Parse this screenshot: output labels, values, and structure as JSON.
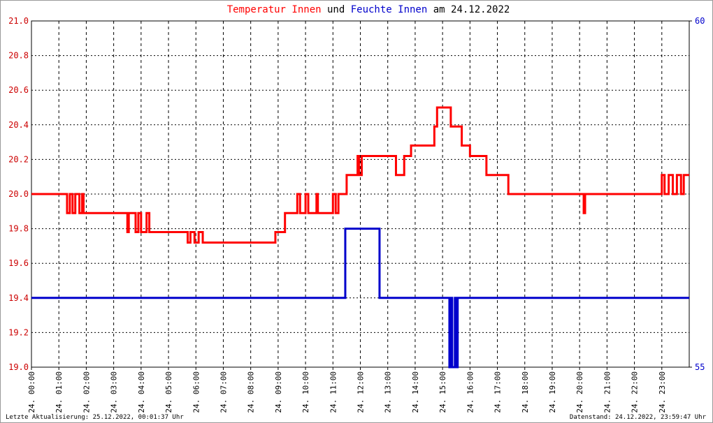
{
  "chart_data": {
    "type": "line",
    "title_parts": [
      {
        "text": "Temperatur Innen",
        "color": "#ff0000"
      },
      {
        "text": "und",
        "color": "#000000"
      },
      {
        "text": "Feuchte Innen",
        "color": "#0000cc"
      },
      {
        "text": "am 24.12.2022",
        "color": "#000000"
      }
    ],
    "footer_left": "Letzte Aktualisierung: 25.12.2022, 00:01:37 Uhr",
    "footer_right": "Datenstand: 24.12.2022, 23:59:47 Uhr",
    "grid": true,
    "xlim": [
      0,
      24
    ],
    "xticks": [
      {
        "value": 0,
        "label": "24. 00:00"
      },
      {
        "value": 1,
        "label": "24. 01:00"
      },
      {
        "value": 2,
        "label": "24. 02:00"
      },
      {
        "value": 3,
        "label": "24. 03:00"
      },
      {
        "value": 4,
        "label": "24. 04:00"
      },
      {
        "value": 5,
        "label": "24. 05:00"
      },
      {
        "value": 6,
        "label": "24. 06:00"
      },
      {
        "value": 7,
        "label": "24. 07:00"
      },
      {
        "value": 8,
        "label": "24. 08:00"
      },
      {
        "value": 9,
        "label": "24. 09:00"
      },
      {
        "value": 10,
        "label": "24. 10:00"
      },
      {
        "value": 11,
        "label": "24. 11:00"
      },
      {
        "value": 12,
        "label": "24. 12:00"
      },
      {
        "value": 13,
        "label": "24. 13:00"
      },
      {
        "value": 14,
        "label": "24. 14:00"
      },
      {
        "value": 15,
        "label": "24. 15:00"
      },
      {
        "value": 16,
        "label": "24. 16:00"
      },
      {
        "value": 17,
        "label": "24. 17:00"
      },
      {
        "value": 18,
        "label": "24. 18:00"
      },
      {
        "value": 19,
        "label": "24. 19:00"
      },
      {
        "value": 20,
        "label": "24. 20:00"
      },
      {
        "value": 21,
        "label": "24. 21:00"
      },
      {
        "value": 22,
        "label": "24. 22:00"
      },
      {
        "value": 23,
        "label": "24. 23:00"
      }
    ],
    "ylim": [
      19,
      21
    ],
    "yticks": [
      {
        "value": 19,
        "label": "19.0"
      },
      19.2,
      19.4,
      19.6,
      19.8,
      {
        "value": 20,
        "label": "20.0"
      },
      20.2,
      20.4,
      20.6,
      20.8,
      {
        "value": 21,
        "label": "21.0"
      }
    ],
    "y_color": "#cc0000",
    "y2lim": [
      55,
      60
    ],
    "y2ticks": [
      55,
      60
    ],
    "y2_color": "#0000cc",
    "series": [
      {
        "name": "Temperatur Innen",
        "color": "#ff0000",
        "axis": "y",
        "x": [
          0,
          1.3,
          1.3,
          1.4,
          1.4,
          1.5,
          1.5,
          1.6,
          1.6,
          1.75,
          1.75,
          1.85,
          1.85,
          1.9,
          1.9,
          3.5,
          3.5,
          3.55,
          3.55,
          3.8,
          3.8,
          3.9,
          3.9,
          4.0,
          4.0,
          4.2,
          4.2,
          4.3,
          4.3,
          5.7,
          5.7,
          5.8,
          5.8,
          5.95,
          5.95,
          6.1,
          6.1,
          6.25,
          6.25,
          8.9,
          8.9,
          9.25,
          9.25,
          9.7,
          9.7,
          9.8,
          9.8,
          10.0,
          10.0,
          10.1,
          10.1,
          10.4,
          10.4,
          10.45,
          10.45,
          11.0,
          11.0,
          11.1,
          11.1,
          11.2,
          11.2,
          11.5,
          11.5,
          11.9,
          11.9,
          11.95,
          11.95,
          12.05,
          12.05,
          13.3,
          13.3,
          13.6,
          13.6,
          13.85,
          13.85,
          14.7,
          14.7,
          14.8,
          14.8,
          15.3,
          15.3,
          15.7,
          15.7,
          16.0,
          16.0,
          16.6,
          16.6,
          17.4,
          17.4,
          20.15,
          20.15,
          20.2,
          20.2,
          23.0,
          23.0,
          23.1,
          23.1,
          23.25,
          23.25,
          23.4,
          23.4,
          23.55,
          23.55,
          23.7,
          23.7,
          23.8,
          23.8,
          24
        ],
        "values": [
          20,
          20,
          19.89,
          19.89,
          20,
          20,
          19.89,
          19.89,
          20,
          20,
          19.89,
          19.89,
          20,
          20,
          19.89,
          19.89,
          19.78,
          19.78,
          19.89,
          19.89,
          19.78,
          19.78,
          19.89,
          19.89,
          19.78,
          19.78,
          19.89,
          19.89,
          19.78,
          19.78,
          19.72,
          19.72,
          19.78,
          19.78,
          19.72,
          19.72,
          19.78,
          19.78,
          19.72,
          19.72,
          19.78,
          19.78,
          19.89,
          19.89,
          20,
          20,
          19.89,
          19.89,
          20,
          20,
          19.89,
          19.89,
          20,
          20,
          19.89,
          19.89,
          20,
          20,
          19.89,
          19.89,
          20,
          20,
          20.11,
          20.11,
          20.22,
          20.22,
          20.11,
          20.11,
          20.22,
          20.22,
          20.11,
          20.11,
          20.22,
          20.22,
          20.28,
          20.28,
          20.39,
          20.39,
          20.5,
          20.5,
          20.39,
          20.39,
          20.28,
          20.28,
          20.22,
          20.22,
          20.11,
          20.11,
          20,
          20,
          19.89,
          19.89,
          20,
          20,
          20.11,
          20.11,
          20,
          20,
          20.11,
          20.11,
          20,
          20,
          20.11,
          20.11,
          20,
          20,
          20.11,
          20.11
        ]
      },
      {
        "name": "Feuchte Innen",
        "color": "#0000cc",
        "axis": "y2",
        "x": [
          0,
          11.45,
          11.45,
          12.7,
          12.7,
          15.25,
          15.25,
          15.3,
          15.3,
          15.35,
          15.35,
          15.45,
          15.45,
          15.5,
          15.5,
          15.55,
          15.55,
          24
        ],
        "values": [
          56,
          56,
          57,
          57,
          56,
          56,
          55,
          55,
          56,
          56,
          55,
          55,
          56,
          56,
          55,
          55,
          56,
          56
        ]
      }
    ]
  }
}
